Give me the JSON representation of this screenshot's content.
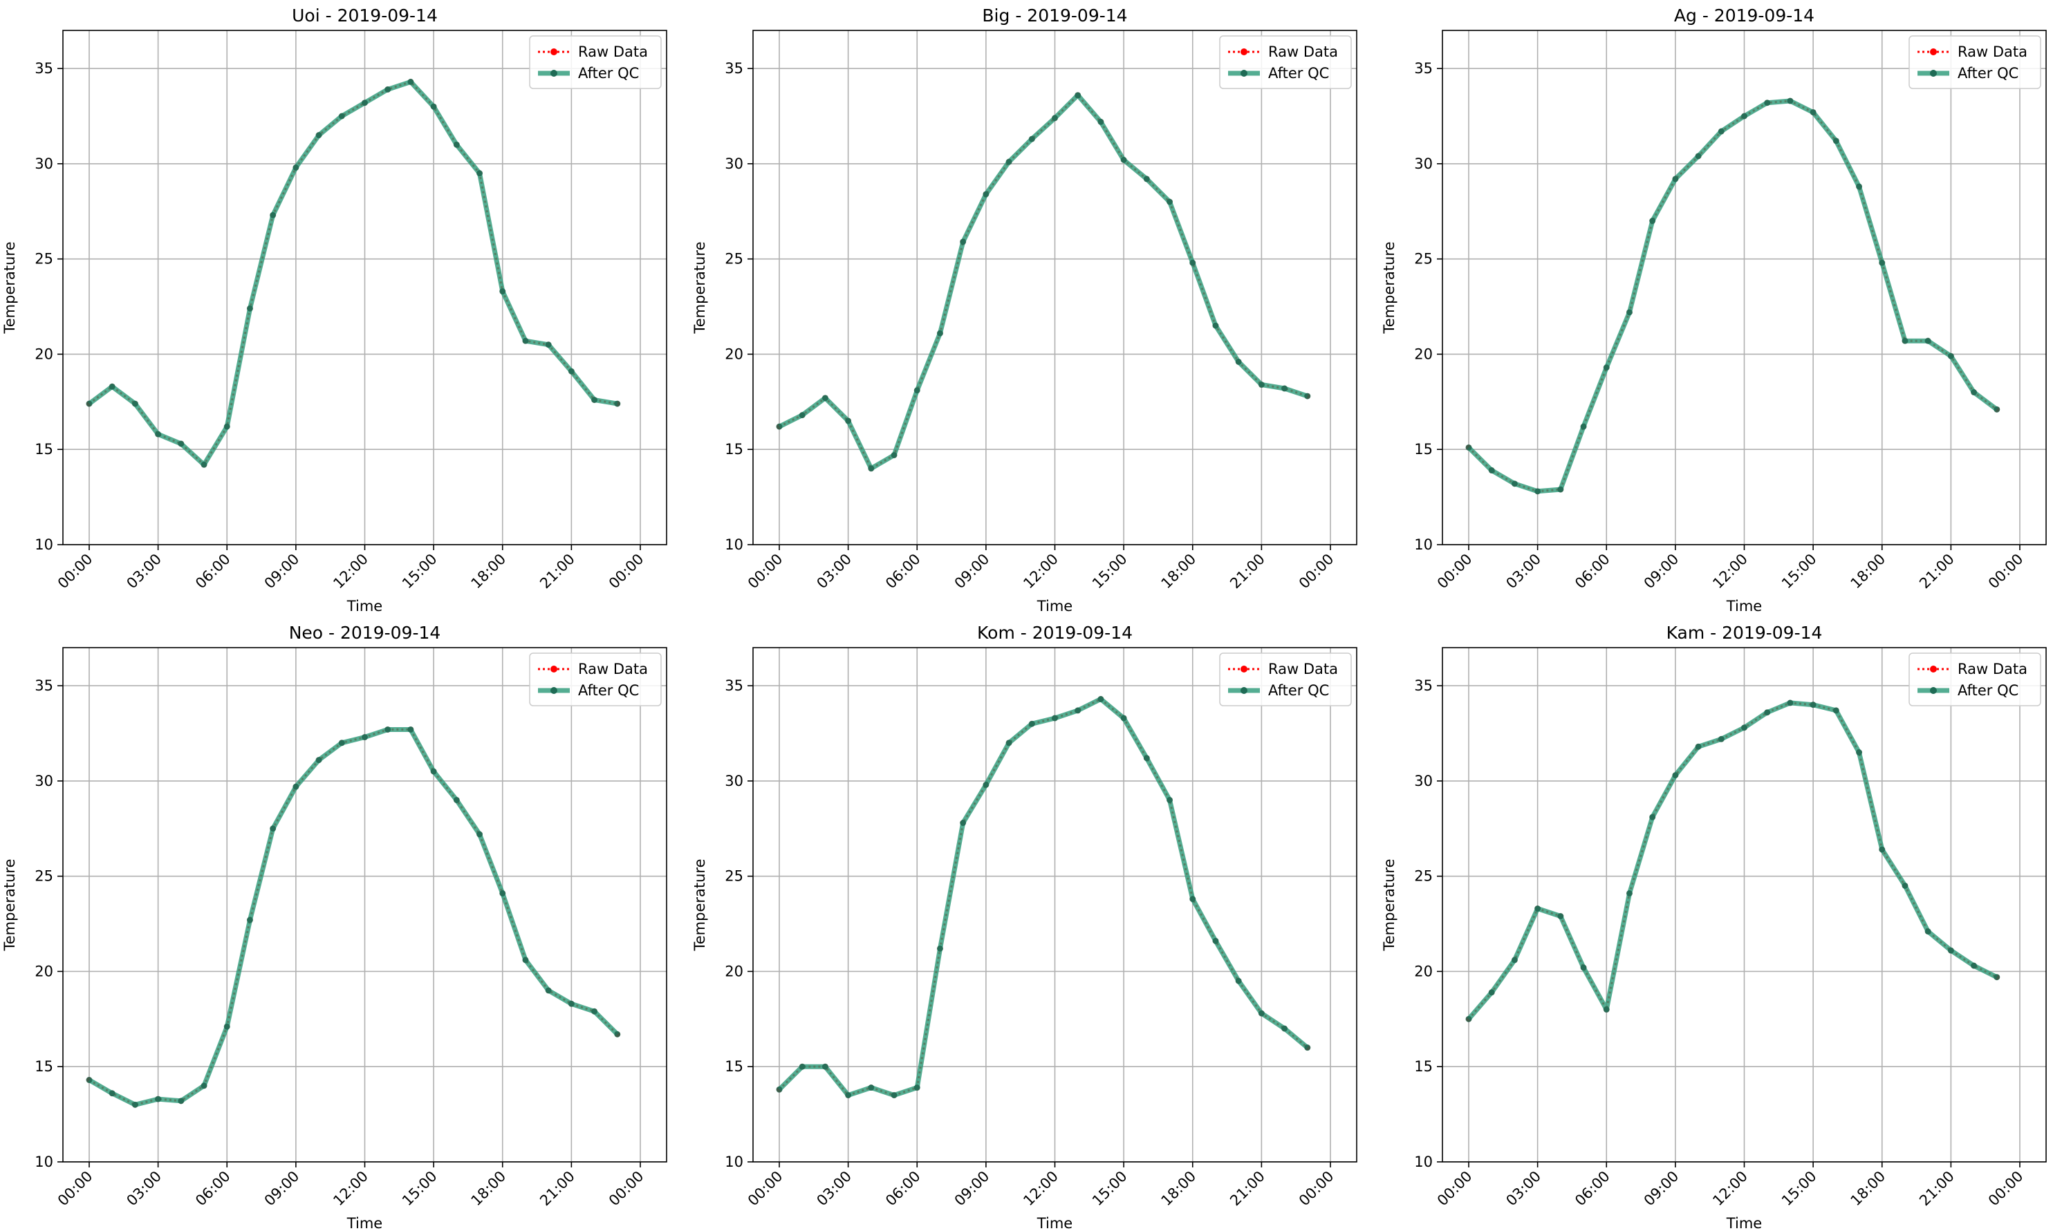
{
  "chart_data": [
    {
      "type": "line",
      "title": "Uoi - 2019-09-14",
      "xlabel": "Time",
      "ylabel": "Temperature",
      "xticks": [
        "00:00",
        "03:00",
        "06:00",
        "09:00",
        "12:00",
        "15:00",
        "18:00",
        "21:00",
        "00:00"
      ],
      "ylim": [
        10,
        37
      ],
      "yticks": [
        10,
        15,
        20,
        25,
        30,
        35
      ],
      "grid": true,
      "legend_position": "top-right",
      "x": [
        "00:00",
        "01:00",
        "02:00",
        "03:00",
        "04:00",
        "05:00",
        "06:00",
        "07:00",
        "08:00",
        "09:00",
        "10:00",
        "11:00",
        "12:00",
        "13:00",
        "14:00",
        "15:00",
        "16:00",
        "17:00",
        "18:00",
        "19:00",
        "20:00",
        "21:00",
        "22:00",
        "23:00"
      ],
      "series": [
        {
          "name": "Raw Data",
          "color": "#ff0000",
          "values": [
            17.4,
            18.3,
            17.4,
            15.8,
            15.3,
            14.2,
            16.2,
            22.4,
            27.3,
            29.8,
            31.5,
            32.5,
            33.2,
            33.9,
            34.3,
            33.0,
            31.0,
            29.5,
            23.3,
            20.7,
            20.5,
            19.1,
            17.6,
            17.4
          ]
        },
        {
          "name": "After QC",
          "color": "#2e9b7a",
          "values": [
            17.4,
            18.3,
            17.4,
            15.8,
            15.3,
            14.2,
            16.2,
            22.4,
            27.3,
            29.8,
            31.5,
            32.5,
            33.2,
            33.9,
            34.3,
            33.0,
            31.0,
            29.5,
            23.3,
            20.7,
            20.5,
            19.1,
            17.6,
            17.4
          ]
        }
      ]
    },
    {
      "type": "line",
      "title": "Big - 2019-09-14",
      "xlabel": "Time",
      "ylabel": "Temperature",
      "xticks": [
        "00:00",
        "03:00",
        "06:00",
        "09:00",
        "12:00",
        "15:00",
        "18:00",
        "21:00",
        "00:00"
      ],
      "ylim": [
        10,
        37
      ],
      "yticks": [
        10,
        15,
        20,
        25,
        30,
        35
      ],
      "grid": true,
      "legend_position": "top-right",
      "x": [
        "00:00",
        "01:00",
        "02:00",
        "03:00",
        "04:00",
        "05:00",
        "06:00",
        "07:00",
        "08:00",
        "09:00",
        "10:00",
        "11:00",
        "12:00",
        "13:00",
        "14:00",
        "15:00",
        "16:00",
        "17:00",
        "18:00",
        "19:00",
        "20:00",
        "21:00",
        "22:00",
        "23:00"
      ],
      "series": [
        {
          "name": "Raw Data",
          "color": "#ff0000",
          "values": [
            16.2,
            16.8,
            17.7,
            16.5,
            14.0,
            14.7,
            18.1,
            21.1,
            25.9,
            28.4,
            30.1,
            31.3,
            32.4,
            33.6,
            32.2,
            30.2,
            29.2,
            28.0,
            24.8,
            21.5,
            19.6,
            18.4,
            18.2,
            17.8
          ]
        },
        {
          "name": "After QC",
          "color": "#2e9b7a",
          "values": [
            16.2,
            16.8,
            17.7,
            16.5,
            14.0,
            14.7,
            18.1,
            21.1,
            25.9,
            28.4,
            30.1,
            31.3,
            32.4,
            33.6,
            32.2,
            30.2,
            29.2,
            28.0,
            24.8,
            21.5,
            19.6,
            18.4,
            18.2,
            17.8
          ]
        }
      ]
    },
    {
      "type": "line",
      "title": "Ag - 2019-09-14",
      "xlabel": "Time",
      "ylabel": "Temperature",
      "xticks": [
        "00:00",
        "03:00",
        "06:00",
        "09:00",
        "12:00",
        "15:00",
        "18:00",
        "21:00",
        "00:00"
      ],
      "ylim": [
        10,
        37
      ],
      "yticks": [
        10,
        15,
        20,
        25,
        30,
        35
      ],
      "grid": true,
      "legend_position": "top-right",
      "x": [
        "00:00",
        "01:00",
        "02:00",
        "03:00",
        "04:00",
        "05:00",
        "06:00",
        "07:00",
        "08:00",
        "09:00",
        "10:00",
        "11:00",
        "12:00",
        "13:00",
        "14:00",
        "15:00",
        "16:00",
        "17:00",
        "18:00",
        "19:00",
        "20:00",
        "21:00",
        "22:00",
        "23:00"
      ],
      "series": [
        {
          "name": "Raw Data",
          "color": "#ff0000",
          "values": [
            15.1,
            13.9,
            13.2,
            12.8,
            12.9,
            16.2,
            19.3,
            22.2,
            27.0,
            29.2,
            30.4,
            31.7,
            32.5,
            33.2,
            33.3,
            32.7,
            31.2,
            28.8,
            24.8,
            20.7,
            20.7,
            19.9,
            18.0,
            17.1
          ]
        },
        {
          "name": "After QC",
          "color": "#2e9b7a",
          "values": [
            15.1,
            13.9,
            13.2,
            12.8,
            12.9,
            16.2,
            19.3,
            22.2,
            27.0,
            29.2,
            30.4,
            31.7,
            32.5,
            33.2,
            33.3,
            32.7,
            31.2,
            28.8,
            24.8,
            20.7,
            20.7,
            19.9,
            18.0,
            17.1
          ]
        }
      ]
    },
    {
      "type": "line",
      "title": "Neo - 2019-09-14",
      "xlabel": "Time",
      "ylabel": "Temperature",
      "xticks": [
        "00:00",
        "03:00",
        "06:00",
        "09:00",
        "12:00",
        "15:00",
        "18:00",
        "21:00",
        "00:00"
      ],
      "ylim": [
        10,
        37
      ],
      "yticks": [
        10,
        15,
        20,
        25,
        30,
        35
      ],
      "grid": true,
      "legend_position": "top-right",
      "x": [
        "00:00",
        "01:00",
        "02:00",
        "03:00",
        "04:00",
        "05:00",
        "06:00",
        "07:00",
        "08:00",
        "09:00",
        "10:00",
        "11:00",
        "12:00",
        "13:00",
        "14:00",
        "15:00",
        "16:00",
        "17:00",
        "18:00",
        "19:00",
        "20:00",
        "21:00",
        "22:00",
        "23:00"
      ],
      "series": [
        {
          "name": "Raw Data",
          "color": "#ff0000",
          "values": [
            14.3,
            13.6,
            13.0,
            13.3,
            13.2,
            14.0,
            17.1,
            22.7,
            27.5,
            29.7,
            31.1,
            32.0,
            32.3,
            32.7,
            32.7,
            30.5,
            29.0,
            27.2,
            24.1,
            20.6,
            19.0,
            18.3,
            17.9,
            16.7
          ]
        },
        {
          "name": "After QC",
          "color": "#2e9b7a",
          "values": [
            14.3,
            13.6,
            13.0,
            13.3,
            13.2,
            14.0,
            17.1,
            22.7,
            27.5,
            29.7,
            31.1,
            32.0,
            32.3,
            32.7,
            32.7,
            30.5,
            29.0,
            27.2,
            24.1,
            20.6,
            19.0,
            18.3,
            17.9,
            16.7
          ]
        }
      ]
    },
    {
      "type": "line",
      "title": "Kom - 2019-09-14",
      "xlabel": "Time",
      "ylabel": "Temperature",
      "xticks": [
        "00:00",
        "03:00",
        "06:00",
        "09:00",
        "12:00",
        "15:00",
        "18:00",
        "21:00",
        "00:00"
      ],
      "ylim": [
        10,
        37
      ],
      "yticks": [
        10,
        15,
        20,
        25,
        30,
        35
      ],
      "grid": true,
      "legend_position": "top-right",
      "x": [
        "00:00",
        "01:00",
        "02:00",
        "03:00",
        "04:00",
        "05:00",
        "06:00",
        "07:00",
        "08:00",
        "09:00",
        "10:00",
        "11:00",
        "12:00",
        "13:00",
        "14:00",
        "15:00",
        "16:00",
        "17:00",
        "18:00",
        "19:00",
        "20:00",
        "21:00",
        "22:00",
        "23:00"
      ],
      "series": [
        {
          "name": "Raw Data",
          "color": "#ff0000",
          "values": [
            13.8,
            15.0,
            15.0,
            13.5,
            13.9,
            13.5,
            13.9,
            21.2,
            27.8,
            29.8,
            32.0,
            33.0,
            33.3,
            33.7,
            34.3,
            33.3,
            31.2,
            29.0,
            23.8,
            21.6,
            19.5,
            17.8,
            17.0,
            16.0
          ]
        },
        {
          "name": "After QC",
          "color": "#2e9b7a",
          "values": [
            13.8,
            15.0,
            15.0,
            13.5,
            13.9,
            13.5,
            13.9,
            21.2,
            27.8,
            29.8,
            32.0,
            33.0,
            33.3,
            33.7,
            34.3,
            33.3,
            31.2,
            29.0,
            23.8,
            21.6,
            19.5,
            17.8,
            17.0,
            16.0
          ]
        }
      ]
    },
    {
      "type": "line",
      "title": "Kam - 2019-09-14",
      "xlabel": "Time",
      "ylabel": "Temperature",
      "xticks": [
        "00:00",
        "03:00",
        "06:00",
        "09:00",
        "12:00",
        "15:00",
        "18:00",
        "21:00",
        "00:00"
      ],
      "ylim": [
        10,
        37
      ],
      "yticks": [
        10,
        15,
        20,
        25,
        30,
        35
      ],
      "grid": true,
      "legend_position": "top-right",
      "x": [
        "00:00",
        "01:00",
        "02:00",
        "03:00",
        "04:00",
        "05:00",
        "06:00",
        "07:00",
        "08:00",
        "09:00",
        "10:00",
        "11:00",
        "12:00",
        "13:00",
        "14:00",
        "15:00",
        "16:00",
        "17:00",
        "18:00",
        "19:00",
        "20:00",
        "21:00",
        "22:00",
        "23:00"
      ],
      "series": [
        {
          "name": "Raw Data",
          "color": "#ff0000",
          "values": [
            17.5,
            18.9,
            20.6,
            23.3,
            22.9,
            20.2,
            18.0,
            24.1,
            28.1,
            30.3,
            31.8,
            32.2,
            32.8,
            33.6,
            34.1,
            34.0,
            33.7,
            31.5,
            26.4,
            24.5,
            22.1,
            21.1,
            20.3,
            19.7
          ]
        },
        {
          "name": "After QC",
          "color": "#2e9b7a",
          "values": [
            17.5,
            18.9,
            20.6,
            23.3,
            22.9,
            20.2,
            18.0,
            24.1,
            28.1,
            30.3,
            31.8,
            32.2,
            32.8,
            33.6,
            34.1,
            34.0,
            33.7,
            31.5,
            26.4,
            24.5,
            22.1,
            21.1,
            20.3,
            19.7
          ]
        }
      ]
    }
  ]
}
